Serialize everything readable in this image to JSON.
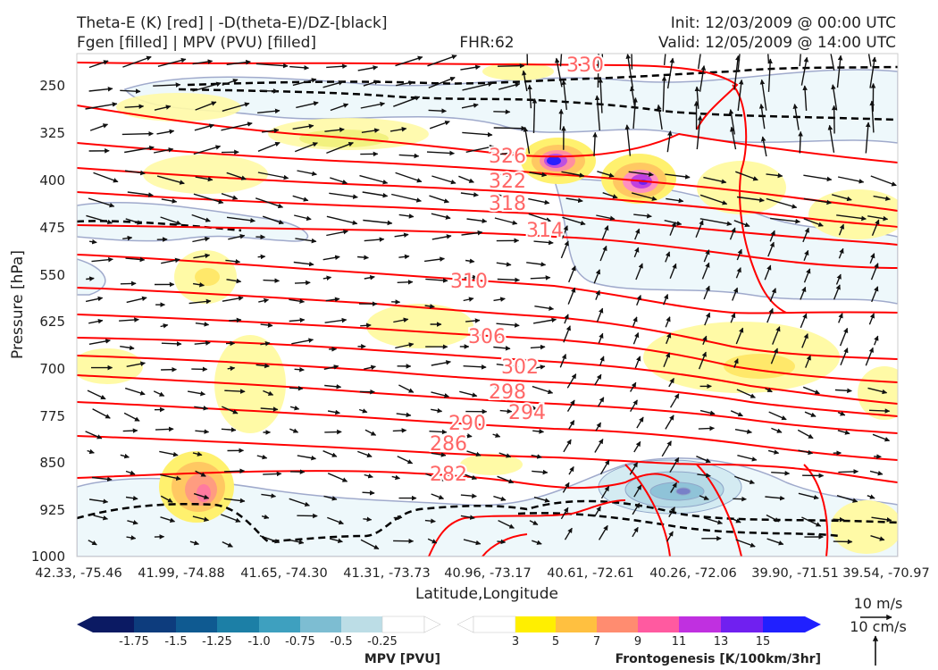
{
  "header": {
    "title_left_1": "Theta-E (K) [red] | -D(theta-E)/DZ-[black]",
    "title_left_2": "Fgen [filled] | MPV (PVU) [filled]",
    "title_center": "FHR:62",
    "title_right_1": "Init: 12/03/2009 @ 00:00 UTC",
    "title_right_2": "Valid: 12/05/2009 @ 14:00 UTC"
  },
  "colors": {
    "theta_e": "#ff0000",
    "theta_e_label": "#ff6666",
    "stability": "#000000",
    "vector": "#111111",
    "mpv": [
      "#0b1a63",
      "#0d3c7d",
      "#0f5a91",
      "#1c7fa6",
      "#3ea0bf",
      "#7dbdd2",
      "#bcdde6",
      "#ffffff"
    ],
    "fgen": [
      "#ffffff",
      "#ffef00",
      "#ffc040",
      "#ff8c70",
      "#ff5aa0",
      "#c030e0",
      "#7020f0",
      "#2020ff"
    ]
  },
  "chart_data": {
    "type": "cross-section",
    "xlabel": "Latitude,Longitude",
    "ylabel": "Pressure [hPa]",
    "ylim": [
      1000,
      200
    ],
    "y_ticks": [
      250,
      325,
      400,
      475,
      550,
      625,
      700,
      775,
      850,
      925,
      1000
    ],
    "x_ticks": [
      "42.33, -75.46",
      "41.99, -74.88",
      "41.65, -74.30",
      "41.31, -73.73",
      "40.96, -73.17",
      "40.61, -72.61",
      "40.26, -72.06",
      "39.90, -71.51",
      "39.54, -70.97"
    ],
    "theta_e_labels": [
      "330",
      "326",
      "322",
      "318",
      "314",
      "310",
      "306",
      "302",
      "298",
      "294",
      "290",
      "286",
      "282"
    ],
    "mpv_colorbar": {
      "label": "MPV [PVU]",
      "ticks": [
        "-1.75",
        "-1.5",
        "-1.25",
        "-1.0",
        "-0.75",
        "-0.5",
        "-0.25"
      ]
    },
    "fgen_colorbar": {
      "label": "Frontogenesis [K/100km/3hr]",
      "ticks": [
        "3",
        "5",
        "7",
        "9",
        "11",
        "13",
        "15"
      ]
    },
    "reference_vectors": [
      "10 m/s",
      "10 cm/s"
    ]
  }
}
